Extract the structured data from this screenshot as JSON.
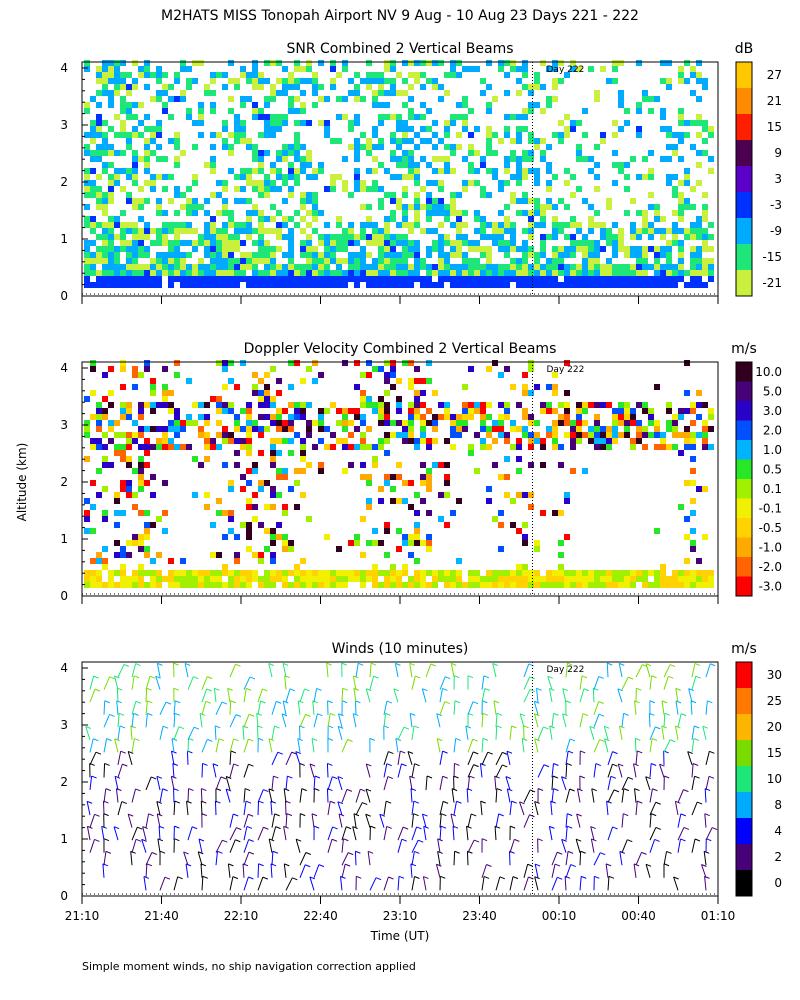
{
  "title": "M2HATS MISS Tonopah Airport NV   9 Aug - 10 Aug 23 Days 221 - 222",
  "footnote": "Simple moment winds, no ship navigation correction applied",
  "y_axis_label": "Altitude (km)",
  "x_axis_label": "Time (UT)",
  "x_tick_labels": [
    "21:10",
    "21:40",
    "22:10",
    "22:40",
    "23:10",
    "23:40",
    "00:10",
    "00:40",
    "01:10"
  ],
  "y_tick_labels": [
    "0",
    "1",
    "2",
    "3",
    "4"
  ],
  "day_marker": "Day 222",
  "chart_data": [
    {
      "type": "heatmap",
      "title": "SNR Combined 2 Vertical Beams",
      "unit": "dB",
      "x_range": [
        "21:10",
        "01:10"
      ],
      "ylim": [
        0,
        4
      ],
      "colorbar": {
        "labels": [
          "27",
          "21",
          "15",
          "9",
          "3",
          "-3",
          "-9",
          "-15",
          "-21"
        ],
        "colors": [
          "#ffc800",
          "#ff8c00",
          "#ff1e00",
          "#4b0050",
          "#5a00c8",
          "#0032ff",
          "#00aaff",
          "#1ee678",
          "#c8f03c"
        ]
      }
    },
    {
      "type": "heatmap",
      "title": "Doppler Velocity Combined 2 Vertical Beams",
      "unit": "m/s",
      "x_range": [
        "21:10",
        "01:10"
      ],
      "ylim": [
        0,
        4
      ],
      "colorbar": {
        "labels": [
          "10.0",
          "5.0",
          "3.0",
          "2.0",
          "1.0",
          "0.5",
          "0.1",
          "-0.1",
          "-0.5",
          "-1.0",
          "-2.0",
          "-3.0"
        ],
        "colors": [
          "#32001e",
          "#460078",
          "#2800c8",
          "#0050ff",
          "#00b4ff",
          "#28e628",
          "#a0f000",
          "#f0f000",
          "#ffd200",
          "#ffaa00",
          "#ff6400",
          "#ff0000"
        ]
      }
    },
    {
      "type": "heatmap",
      "title": "Winds (10 minutes)",
      "unit": "m/s",
      "x_range": [
        "21:10",
        "01:10"
      ],
      "ylim": [
        0,
        4
      ],
      "colorbar": {
        "labels": [
          "30",
          "25",
          "20",
          "15",
          "10",
          "8",
          "4",
          "2",
          "0"
        ],
        "colors": [
          "#ff0000",
          "#ff7800",
          "#ffb400",
          "#78dc00",
          "#1ee678",
          "#00aaff",
          "#0000ff",
          "#460078",
          "#000000"
        ]
      }
    }
  ]
}
